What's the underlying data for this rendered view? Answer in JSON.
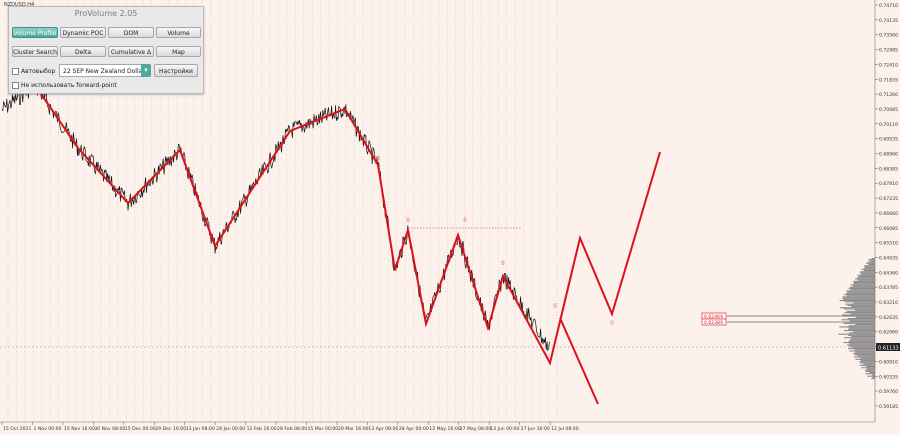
{
  "symbol_label": "NZDUSD,H4",
  "panel": {
    "title": "ProVolume 2.05",
    "buttons": [
      {
        "label": "Volume Profile",
        "active": true
      },
      {
        "label": "Dynamic POC",
        "active": false
      },
      {
        "label": "DOM",
        "active": false
      },
      {
        "label": "Volume",
        "active": false
      },
      {
        "label": "Cluster Search",
        "active": false
      },
      {
        "label": "Delta",
        "active": false
      },
      {
        "label": "Cumulative Δ",
        "active": false
      },
      {
        "label": "Map",
        "active": false
      }
    ],
    "auto_select_label": "Автовыбор",
    "instrument_value": "22 SEP New Zealand Dollar",
    "settings_label": "Настройки",
    "forward_point_label": "Не использовать forward-point"
  },
  "chart_data": {
    "type": "line",
    "price_axis_ticks": [
      "0.74710",
      "0.74135",
      "0.73560",
      "0.72985",
      "0.72410",
      "0.71835",
      "0.71260",
      "0.70685",
      "0.70110",
      "0.69535",
      "0.68960",
      "0.68385",
      "0.67810",
      "0.67235",
      "0.66660",
      "0.66085",
      "0.65510",
      "0.64935",
      "0.64360",
      "0.63785",
      "0.63210",
      "0.62635",
      "0.62060",
      "0.61485",
      "0.60910",
      "0.60335",
      "0.59760",
      "0.59185"
    ],
    "time_axis_ticks": [
      "15 Oct 2021",
      "1 Nov 00:00",
      "15 Nov 16:00",
      "30 Nov 08:00",
      "15 Dec 00:00",
      "29 Dec 16:00",
      "13 Jan 08:00",
      "28 Jan 00:00",
      "11 Feb 16:00",
      "28 Feb 08:00",
      "15 Mar 00:00",
      "29 Mar 16:00",
      "13 Apr 08:00",
      "28 Apr 00:00",
      "12 May 16:00",
      "27 May 08:00",
      "13 Jun 00:00",
      "27 Jun 16:00",
      "12 Jul 08:00"
    ],
    "current_price": "0.61133",
    "level_labels": [
      "0.62469",
      "0.62389"
    ],
    "wave_labels": [
      "8",
      "8",
      "8",
      "8",
      "8",
      "0"
    ],
    "colors": {
      "wave": "#d9121c",
      "price": "#111111",
      "profile": "#8a8a8a",
      "grid": "#bdbdbd",
      "background": "#fdf1ec",
      "marker": "#f07c72"
    }
  }
}
